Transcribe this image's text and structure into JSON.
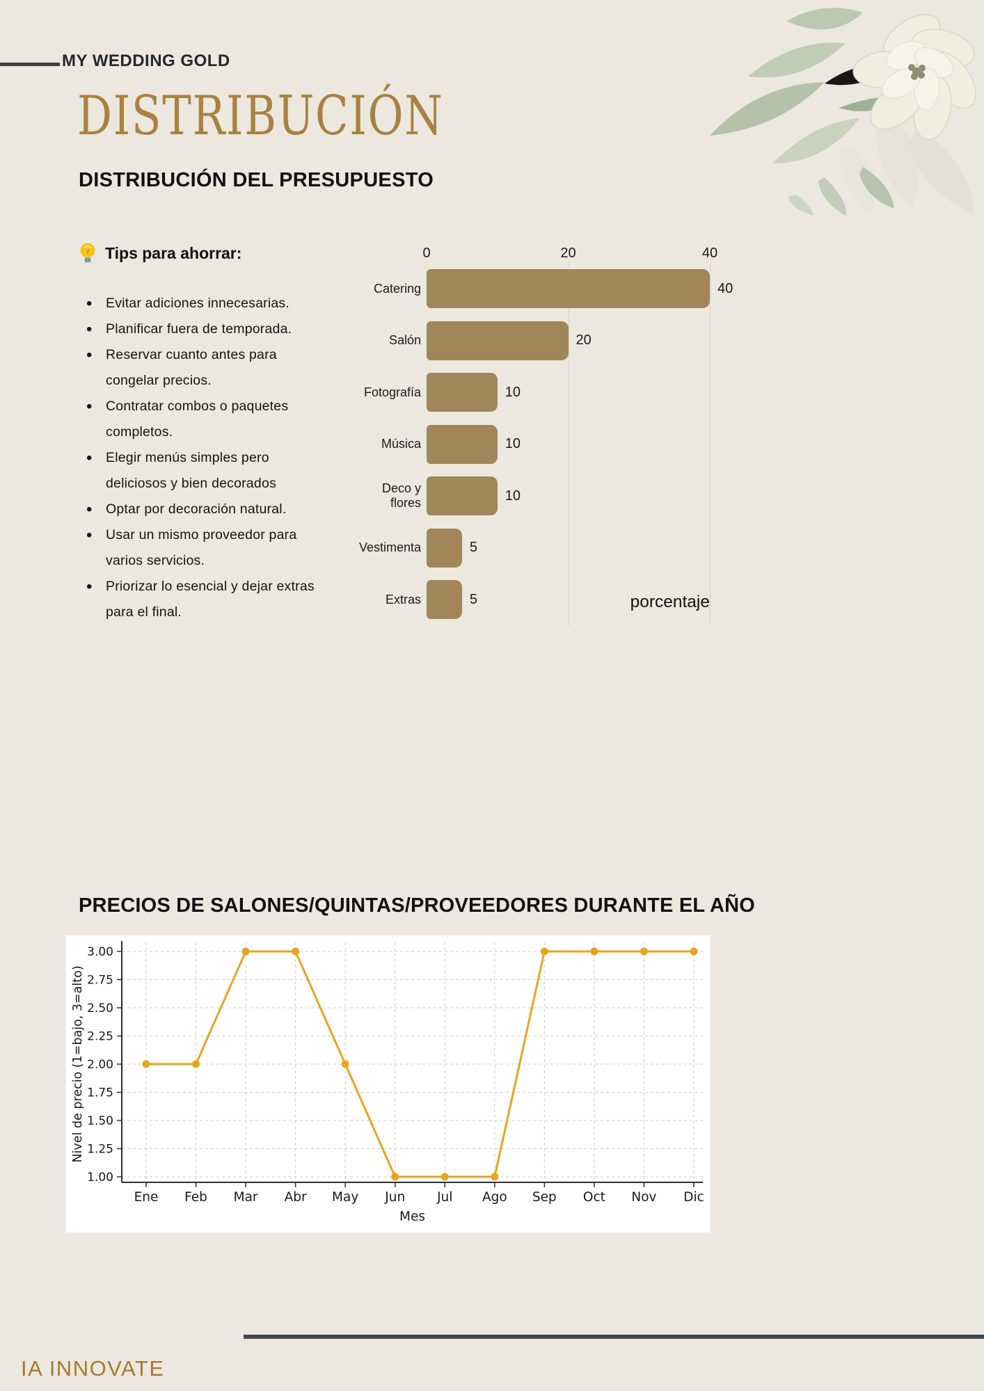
{
  "page": {
    "background_color": "#ece7df",
    "brand": "MY WEDDING GOLD",
    "title": "DISTRIBUCIÓN",
    "subtitle": "DISTRIBUCIÓN DEL PRESUPUESTO",
    "accent_gold": "#a8823f",
    "footer_brand": "IA INNOVATE"
  },
  "tips": {
    "icon": "lightbulb-icon",
    "heading": "Tips para ahorrar:",
    "items": [
      "Evitar adiciones innecesarias.",
      "Planificar fuera de temporada.",
      "Reservar cuanto antes para congelar precios.",
      "Contratar combos o paquetes completos.",
      "Elegir menús simples pero deliciosos y bien decorados",
      "Optar por decoración natural.",
      "Usar un mismo proveedor para varios servicios.",
      "Priorizar lo esencial y dejar extras para el final."
    ]
  },
  "chart_data": [
    {
      "type": "bar",
      "orientation": "horizontal",
      "title": "DISTRIBUCIÓN DEL PRESUPUESTO",
      "categories": [
        "Catering",
        "Salón",
        "Fotografía",
        "Música",
        "Deco y flores",
        "Vestimenta",
        "Extras"
      ],
      "values": [
        40,
        20,
        10,
        10,
        10,
        5,
        5
      ],
      "xlabel": "porcentaje",
      "xticks": [
        0,
        20,
        40
      ],
      "xlim": [
        0,
        44
      ],
      "bar_color": "#a08658",
      "grid": true,
      "legend": false
    },
    {
      "type": "line",
      "title": "PRECIOS DE SALONES/QUINTAS/PROVEEDORES DURANTE EL AÑO",
      "categories": [
        "Ene",
        "Feb",
        "Mar",
        "Abr",
        "May",
        "Jun",
        "Jul",
        "Ago",
        "Sep",
        "Oct",
        "Nov",
        "Dic"
      ],
      "values": [
        2,
        2,
        3,
        3,
        2,
        1,
        1,
        1,
        3,
        3,
        3,
        3
      ],
      "xlabel": "Mes",
      "ylabel": "Nivel de precio (1=bajo, 3=alto)",
      "ylim": [
        1.0,
        3.0
      ],
      "yticks": [
        "1.00",
        "1.25",
        "1.50",
        "1.75",
        "2.00",
        "2.25",
        "2.50",
        "2.75",
        "3.00"
      ],
      "line_color": "#e7a41d",
      "marker": "circle",
      "grid": "dashed",
      "panel_color": "#ffffff"
    }
  ]
}
